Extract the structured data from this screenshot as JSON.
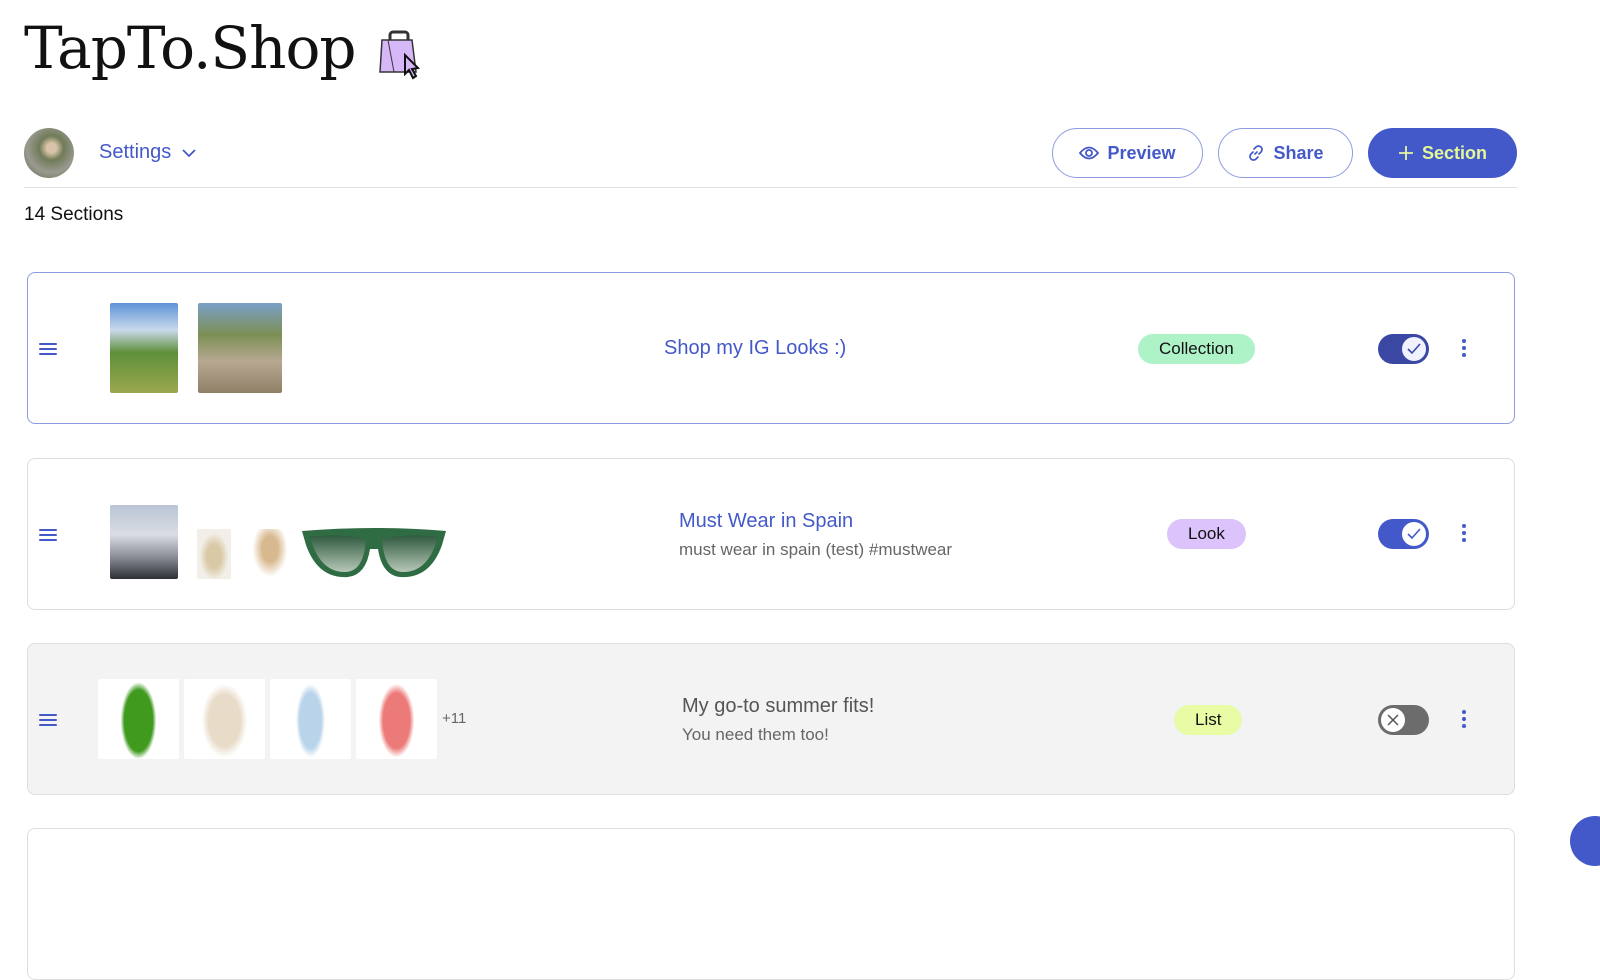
{
  "app": {
    "title": "TapTo.Shop",
    "logo_icon": "shopping-bag-cursor-icon"
  },
  "toolbar": {
    "settings_label": "Settings",
    "preview_label": "Preview",
    "share_label": "Share",
    "add_section_label": "Section"
  },
  "sections_count": "14 Sections",
  "colors": {
    "accent": "#4459c9",
    "accent_text": "#e4f79a",
    "collection": "#aef2c8",
    "look": "#dcc3fb",
    "list": "#e7fca4"
  },
  "sections": [
    {
      "title": "Shop my IG Looks :)",
      "description": "",
      "type": "Collection",
      "enabled": true
    },
    {
      "title": "Must Wear in Spain",
      "description": "must wear in spain (test) #mustwear",
      "type": "Look",
      "enabled": true
    },
    {
      "title": "My go-to summer fits!",
      "description": "You need them too!",
      "type": "List",
      "enabled": false,
      "more_count": "+11"
    }
  ]
}
